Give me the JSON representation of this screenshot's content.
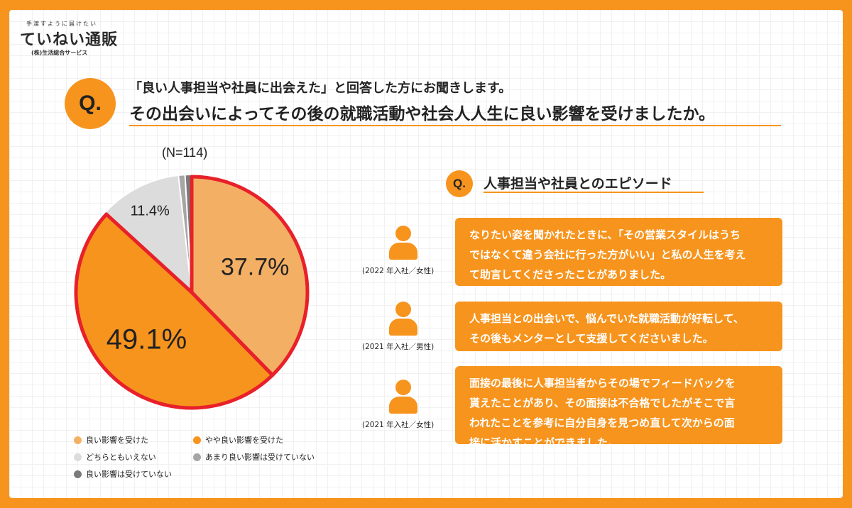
{
  "logo": {
    "tagline": "手渡すように届けたい",
    "name": "ていねい通販",
    "company": "(株)生活総合サービス"
  },
  "question": {
    "badge": "Q.",
    "line1": "「良い人事担当や社員に出会えた」と回答した方にお聞きします。",
    "line2": "その出会いによってその後の就職活動や社会人人生に良い影響を受けましたか。"
  },
  "chart_data": {
    "type": "pie",
    "n_label": "(N=114)",
    "start_angle_deg": 0,
    "direction": "clockwise",
    "slices": [
      {
        "name": "良い影響を受けた",
        "value": 37.7,
        "label": "37.7%",
        "color": "#f3b065"
      },
      {
        "name": "やや良い影響を受けた",
        "value": 49.1,
        "label": "49.1%",
        "color": "#f7941d"
      },
      {
        "name": "どちらともいえない",
        "value": 11.4,
        "label": "11.4%",
        "color": "#dcdcdc"
      },
      {
        "name": "あまり良い影響は受けていない",
        "value": 0.9,
        "label": "",
        "color": "#a6a6a6"
      },
      {
        "name": "良い影響は受けていない",
        "value": 0.9,
        "label": "",
        "color": "#7a7a7a"
      }
    ],
    "highlight_color": "#e8202a",
    "highlight_slices": [
      0,
      1
    ],
    "legend": [
      {
        "label": "良い影響を受けた",
        "color": "#f3b065"
      },
      {
        "label": "やや良い影響を受けた",
        "color": "#f7941d"
      },
      {
        "label": "どちらともいえない",
        "color": "#dcdcdc"
      },
      {
        "label": "あまり良い影響は受けていない",
        "color": "#a6a6a6"
      },
      {
        "label": "良い影響は受けていない",
        "color": "#7a7a7a"
      }
    ]
  },
  "episodes": {
    "badge": "Q.",
    "title": "人事担当や社員とのエピソード",
    "items": [
      {
        "caption": "(2022 年入社／女性)",
        "text": "なりたい姿を聞かれたときに、「その営業スタイルはうち\nではなくて違う会社に行った方がいい」と私の人生を考え\nて助言してくださったことがありました。"
      },
      {
        "caption": "(2021 年入社／男性)",
        "text": "人事担当との出会いで、悩んでいた就職活動が好転して、\nその後もメンターとして支援してくださいました。"
      },
      {
        "caption": "(2021 年入社／女性)",
        "text": "面接の最後に人事担当者からその場でフィードバックを\n貰えたことがあり、その面接は不合格でしたがそこで言\nわれたことを参考に自分自身を見つめ直して次からの面\n接に活かすことができました。"
      }
    ]
  }
}
